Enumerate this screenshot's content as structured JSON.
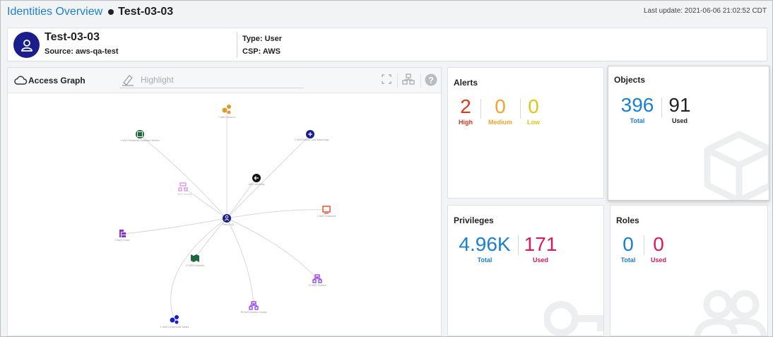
{
  "header": {
    "breadcrumb_link": "Identities Overview",
    "current": "Test-03-03",
    "last_update": "Last update: 2021-06-06 21:02:52 CDT"
  },
  "identity": {
    "name": "Test-03-03",
    "source": "Source: aws-qa-test",
    "type": "Type: User",
    "csp": "CSP: AWS",
    "avatar_icon": "user-icon"
  },
  "graph": {
    "title": "Access Graph",
    "highlight_placeholder": "Highlight",
    "tools": [
      "fullscreen-icon",
      "layout-icon",
      "help-icon"
    ],
    "nodes": [
      {
        "label": "1 AWS Account",
        "icon": "account-icon"
      },
      {
        "label": "1 AWS Relational Database Service",
        "icon": "database-icon"
      },
      {
        "label": "1 AWS Elastic Load Balancings",
        "icon": "load-balancer-icon"
      },
      {
        "label": "AWS Identities",
        "icon": "identity-icon"
      },
      {
        "label": "AWS Groups",
        "icon": "group-icon"
      },
      {
        "label": "Test-03-03",
        "icon": "user-node-icon"
      },
      {
        "label": "1 AWS Instances",
        "icon": "instance-icon"
      },
      {
        "label": "5 AWS Roles",
        "icon": "role-icon"
      },
      {
        "label": "97 AWS Buckets",
        "icon": "bucket-icon"
      },
      {
        "label": "11 AWS Policies",
        "icon": "policy-icon"
      },
      {
        "label": "95 AWS Access Groups",
        "icon": "access-group-icon"
      },
      {
        "label": "1 AWS DynamoDB Tables",
        "icon": "dynamo-icon"
      }
    ]
  },
  "alerts": {
    "title": "Alerts",
    "stats": [
      {
        "value": "2",
        "label": "High",
        "color": "#d93a1f"
      },
      {
        "value": "0",
        "label": "Medium",
        "color": "#f0a52b"
      },
      {
        "value": "0",
        "label": "Low",
        "color": "#dcc817"
      }
    ]
  },
  "objects": {
    "title": "Objects",
    "total_value": "396",
    "total_label": "Total",
    "used_value": "91",
    "used_label": "Used"
  },
  "privileges": {
    "title": "Privileges",
    "total_value": "4.96K",
    "total_label": "Total",
    "used_value": "171",
    "used_label": "Used"
  },
  "roles": {
    "title": "Roles",
    "total_value": "0",
    "total_label": "Total",
    "used_value": "0",
    "used_label": "Used"
  }
}
